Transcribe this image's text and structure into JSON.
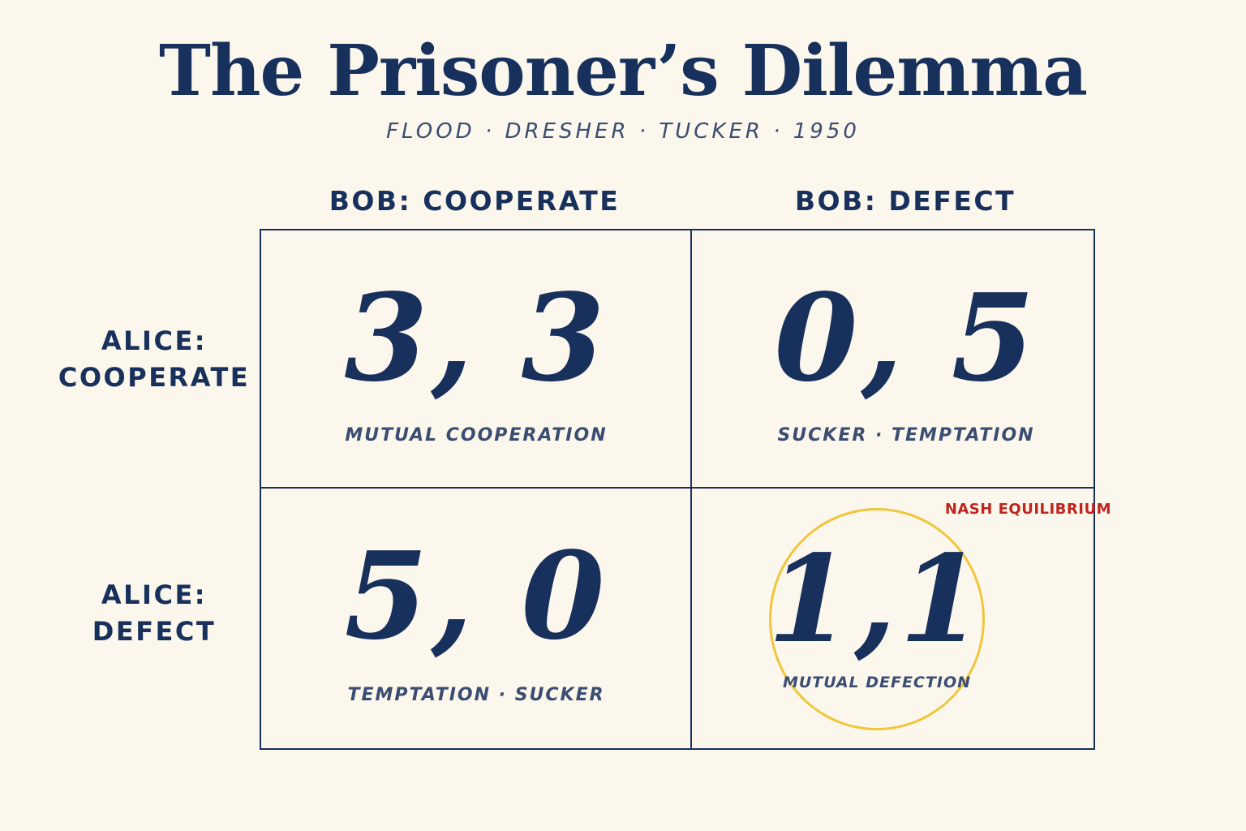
{
  "title": "The Prisoner’s Dilemma",
  "subtitle": "FLOOD · DRESHER · TUCKER · 1950",
  "columns": [
    {
      "label": "BOB: COOPERATE"
    },
    {
      "label": "BOB: DEFECT"
    }
  ],
  "rows": [
    {
      "line1": "ALICE:",
      "line2": "COOPERATE"
    },
    {
      "line1": "ALICE:",
      "line2": "DEFECT"
    }
  ],
  "cells": [
    {
      "payoff": "3, 3",
      "outcome": "MUTUAL COOPERATION"
    },
    {
      "payoff": "0, 5",
      "outcome": "SUCKER · TEMPTATION"
    },
    {
      "payoff": "5, 0",
      "outcome": "TEMPTATION · SUCKER"
    },
    {
      "payoff": "1,1",
      "outcome": "MUTUAL DEFECTION"
    }
  ],
  "nash_equilibrium": {
    "label": "NASH EQUILIBRIUM",
    "label_color": "#c0241e",
    "circle_color": "#f0c63c"
  },
  "colors": {
    "ink": "#17305c",
    "background": "#fcf7ec"
  }
}
